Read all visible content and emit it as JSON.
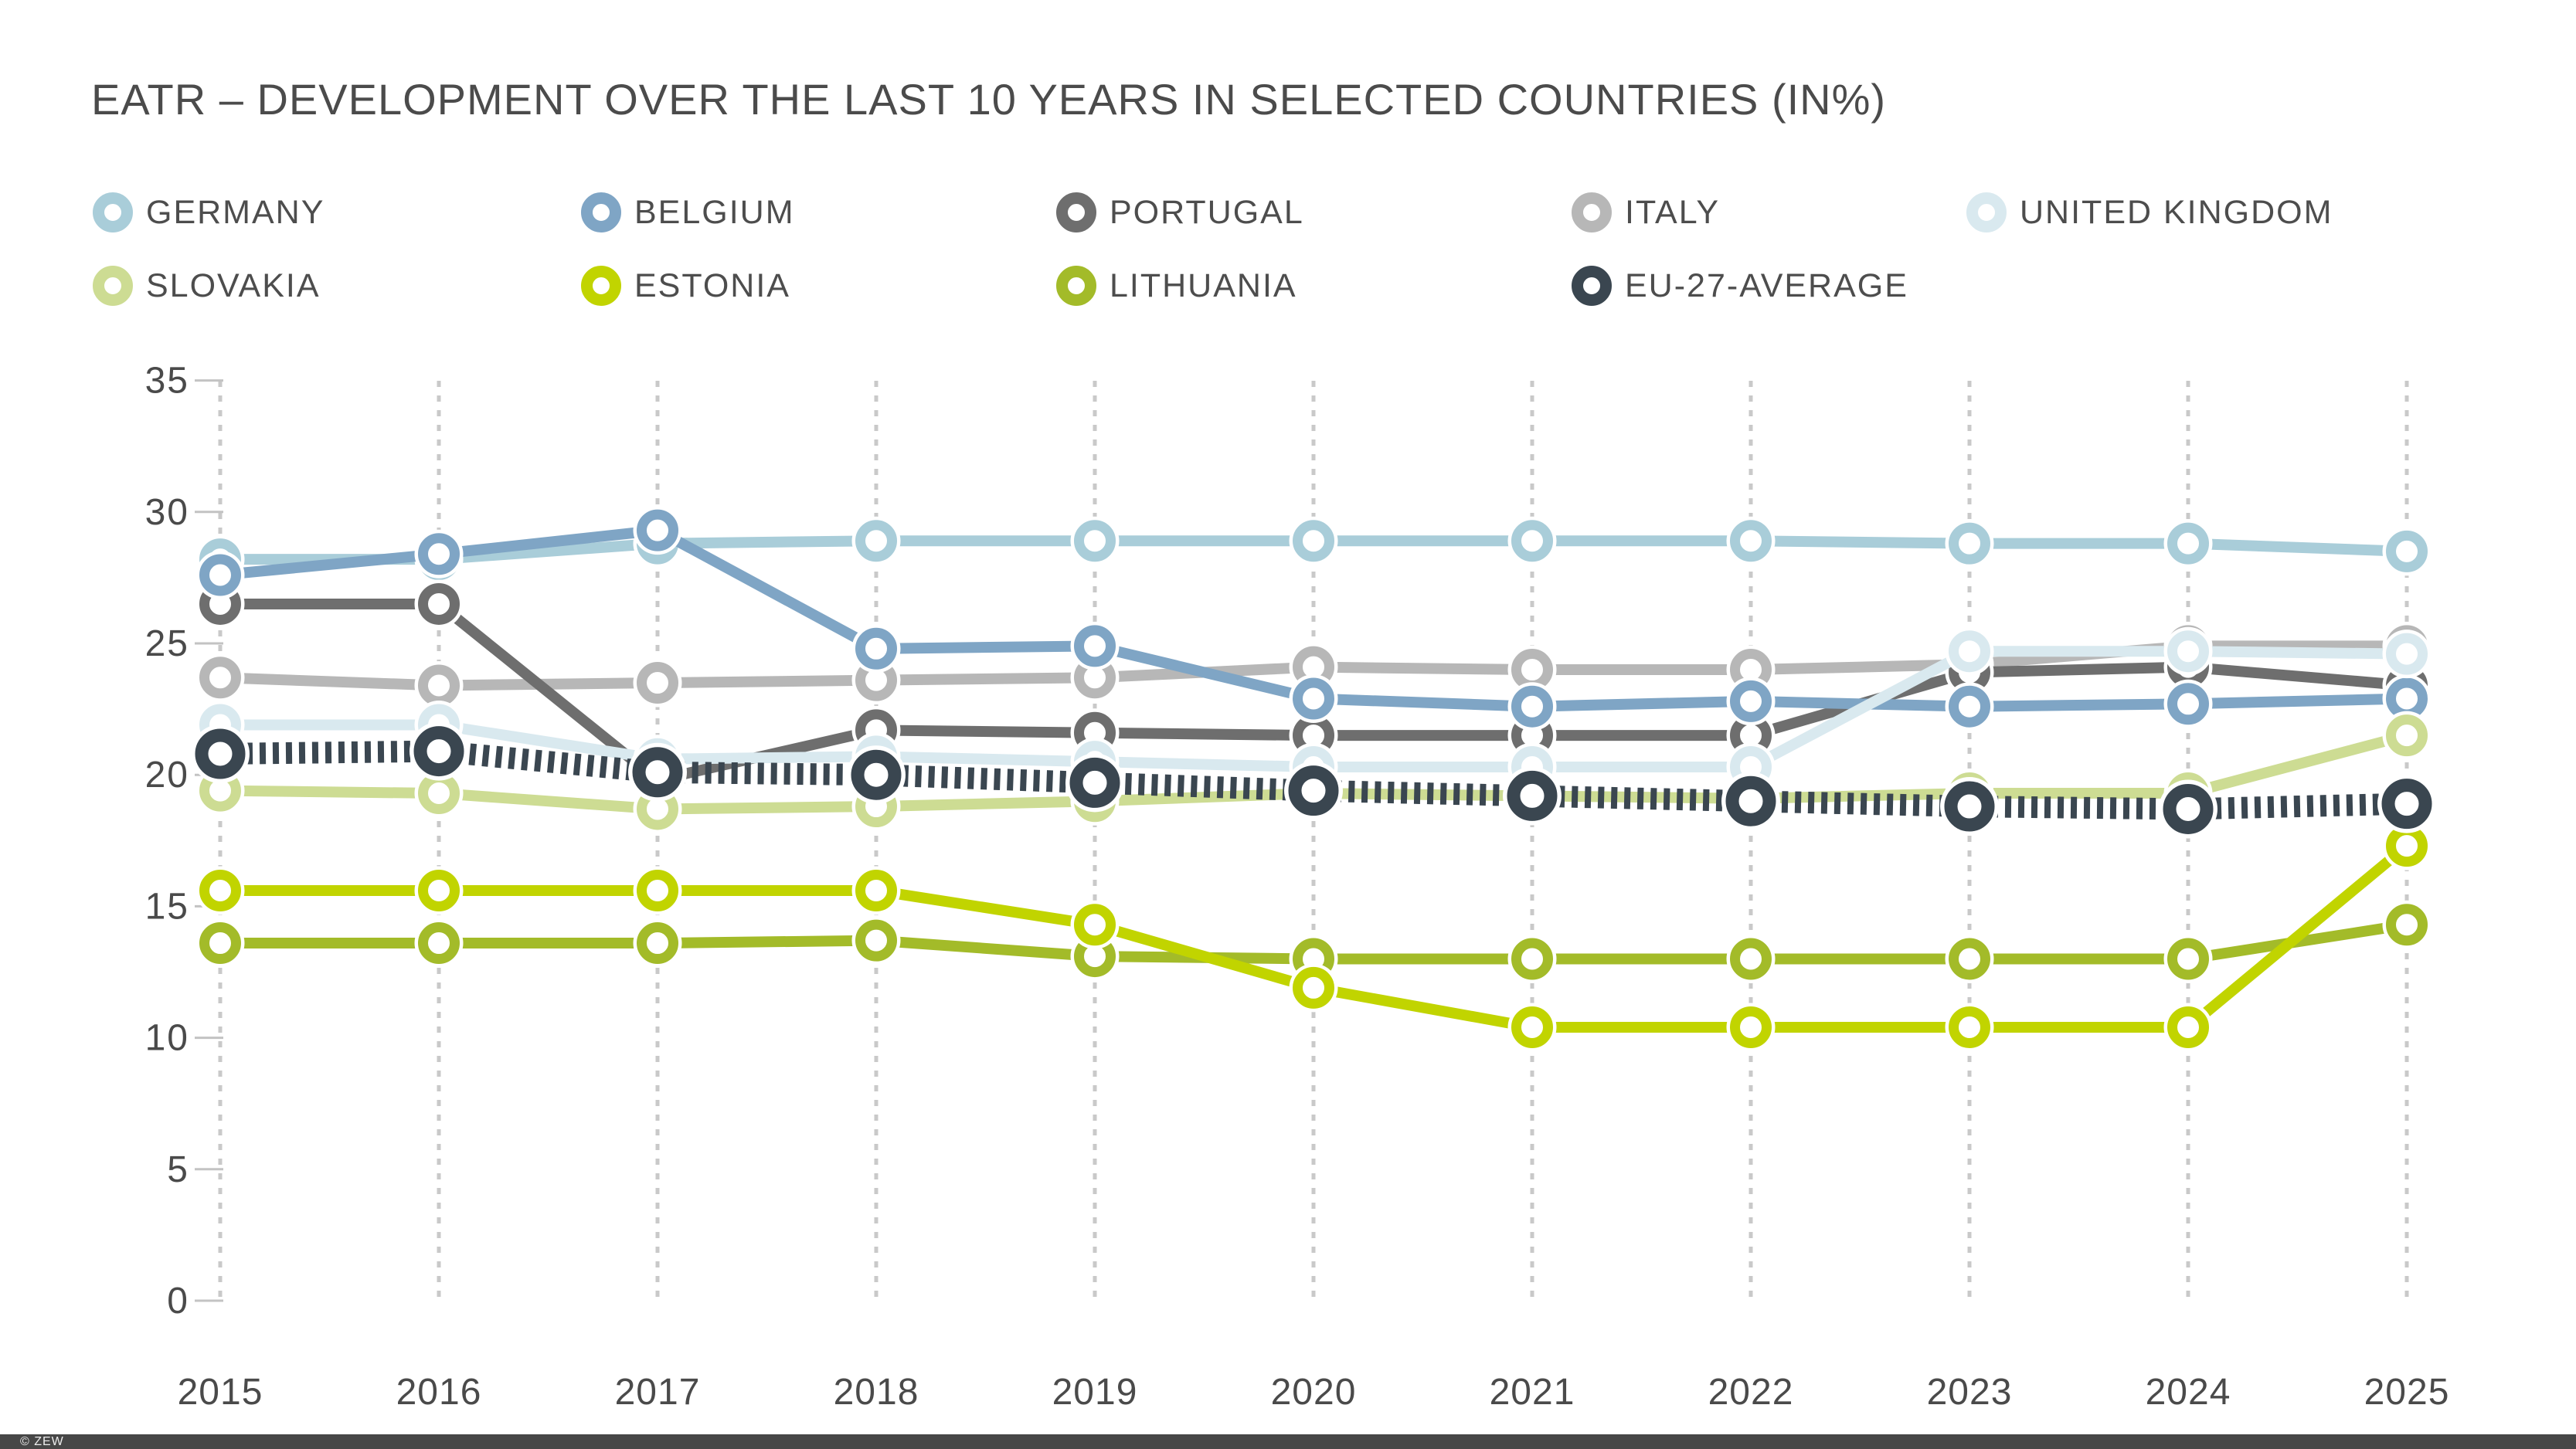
{
  "title": "EATR – DEVELOPMENT OVER THE LAST 10 YEARS IN SELECTED COUNTRIES (IN%)",
  "footer": {
    "copyright": "© ZEW"
  },
  "colors": {
    "background": "#ffffff",
    "title_text": "#4b4b4b",
    "legend_text": "#4d4d4d",
    "axis_text": "#4a4a4a",
    "gridline": "#c9c9c9",
    "tick": "#c3c3c3",
    "footer_bar": "#474747",
    "footer_text": "#ececec"
  },
  "chart_data": {
    "type": "line",
    "title": "EATR – DEVELOPMENT OVER THE LAST 10 YEARS IN SELECTED COUNTRIES (IN%)",
    "xlabel": "",
    "ylabel": "",
    "ylim": [
      0,
      35
    ],
    "yticks": [
      35,
      30,
      25,
      20,
      15,
      10,
      5,
      0
    ],
    "x": [
      2015,
      2016,
      2017,
      2018,
      2019,
      2020,
      2021,
      2022,
      2023,
      2024,
      2025
    ],
    "grid": "vertical-dashed-only",
    "legend_position": "top",
    "marker": "ring",
    "series": [
      {
        "name": "GERMANY",
        "color": "#a9cdd9",
        "line_style": "solid",
        "marker_size": "normal",
        "legend_row": 0,
        "legend_col": 0,
        "z": 1,
        "values": [
          28.2,
          28.2,
          28.8,
          28.9,
          28.9,
          28.9,
          28.9,
          28.9,
          28.8,
          28.8,
          28.5
        ]
      },
      {
        "name": "BELGIUM",
        "color": "#7fa5c5",
        "line_style": "solid",
        "marker_size": "normal",
        "legend_row": 0,
        "legend_col": 1,
        "z": 3,
        "values": [
          27.6,
          28.4,
          29.3,
          24.8,
          24.9,
          22.9,
          22.6,
          22.8,
          22.6,
          22.7,
          22.9
        ]
      },
      {
        "name": "PORTUGAL",
        "color": "#6e6e6e",
        "line_style": "solid",
        "marker_size": "normal",
        "legend_row": 0,
        "legend_col": 2,
        "z": 2,
        "values": [
          26.5,
          26.5,
          19.8,
          21.7,
          21.6,
          21.5,
          21.5,
          21.5,
          23.9,
          24.1,
          23.4
        ]
      },
      {
        "name": "ITALY",
        "color": "#b7b7b7",
        "line_style": "solid",
        "marker_size": "normal",
        "legend_row": 0,
        "legend_col": 3,
        "z": 0,
        "values": [
          23.7,
          23.4,
          23.5,
          23.6,
          23.7,
          24.1,
          24.0,
          24.0,
          24.2,
          24.9,
          24.9
        ]
      },
      {
        "name": "UNITED KINGDOM",
        "color": "#d9e9ef",
        "line_style": "solid",
        "marker_size": "normal",
        "legend_row": 0,
        "legend_col": 4,
        "z": 4,
        "values": [
          21.9,
          21.9,
          20.6,
          20.7,
          20.5,
          20.3,
          20.3,
          20.3,
          24.7,
          24.7,
          24.6
        ]
      },
      {
        "name": "SLOVAKIA",
        "color": "#cddc93",
        "line_style": "solid",
        "marker_size": "normal",
        "legend_row": 1,
        "legend_col": 0,
        "z": 5,
        "values": [
          19.4,
          19.3,
          18.7,
          18.8,
          19.0,
          19.3,
          19.2,
          19.1,
          19.3,
          19.3,
          21.5
        ]
      },
      {
        "name": "ESTONIA",
        "color": "#c1d400",
        "line_style": "solid",
        "marker_size": "normal",
        "legend_row": 1,
        "legend_col": 1,
        "z": 7,
        "values": [
          15.6,
          15.6,
          15.6,
          15.6,
          14.3,
          11.9,
          10.4,
          10.4,
          10.4,
          10.4,
          17.3
        ]
      },
      {
        "name": "LITHUANIA",
        "color": "#a3bb29",
        "line_style": "solid",
        "marker_size": "normal",
        "legend_row": 1,
        "legend_col": 2,
        "z": 6,
        "values": [
          13.6,
          13.6,
          13.6,
          13.7,
          13.1,
          13.0,
          13.0,
          13.0,
          13.0,
          13.0,
          14.3
        ]
      },
      {
        "name": "EU-27-AVERAGE",
        "color": "#3a4650",
        "line_style": "railroad-dashed",
        "marker_size": "large",
        "legend_row": 1,
        "legend_col": 3,
        "z": 8,
        "values": [
          20.8,
          20.9,
          20.1,
          20.0,
          19.7,
          19.4,
          19.2,
          19.0,
          18.8,
          18.7,
          18.9
        ]
      }
    ]
  }
}
